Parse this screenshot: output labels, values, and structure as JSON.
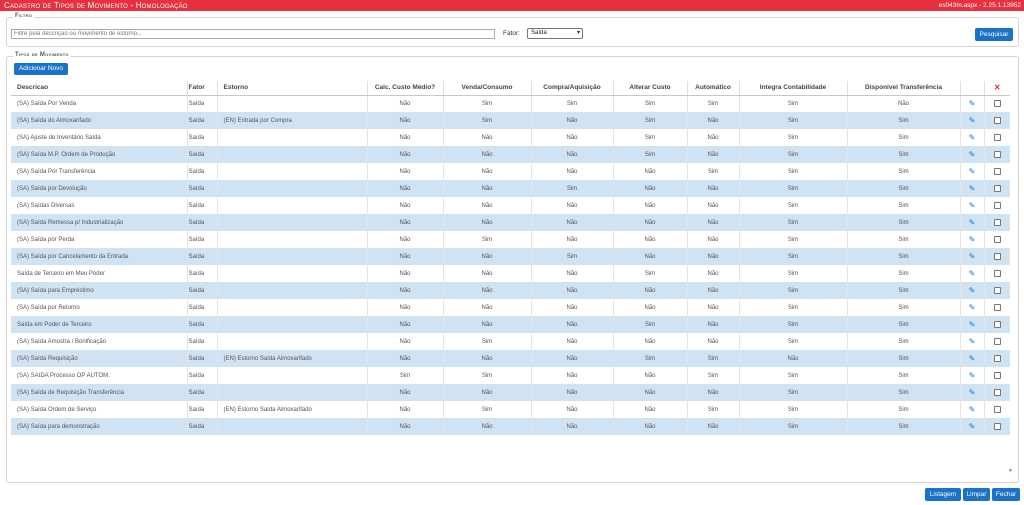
{
  "window": {
    "title": "Cadastro de Tipos de Movimento - Homologação",
    "version": "es043m.aspx - 2.25.1.13952"
  },
  "filter": {
    "legend": "Filtro",
    "placeholder": "Filtre pela descrição ou movimento de estorno...",
    "fator_label": "Fator:",
    "fator_value": "Saída",
    "search_label": "Pesquisar"
  },
  "movements": {
    "legend": "Tipos de Movimento",
    "add_label": "Adicionar Novo",
    "delete_header": "✕",
    "columns": [
      "Descricao",
      "Fator",
      "Estorno",
      "Calc. Custo Médio?",
      "Venda/Consumo",
      "Compra/Aquisição",
      "Alterar Custo",
      "Automático",
      "Integra Contabilidade",
      "Disponível Transferência"
    ],
    "rows": [
      {
        "descricao": "(SA) Saída Por Venda",
        "fator": "Saída",
        "estorno": "",
        "calc": "Não",
        "venda": "Sim",
        "compra": "Sim",
        "alterar": "Sim",
        "auto": "Sim",
        "integra": "Sim",
        "disp": "Não"
      },
      {
        "descricao": "(SA) Saída do Almoxarifado",
        "fator": "Saída",
        "estorno": "(EN) Entrada por Compra",
        "calc": "Não",
        "venda": "Sim",
        "compra": "Não",
        "alterar": "Sim",
        "auto": "Não",
        "integra": "Sim",
        "disp": "Sim"
      },
      {
        "descricao": "(SA) Ajuste de Inventário Saída",
        "fator": "Saída",
        "estorno": "",
        "calc": "Não",
        "venda": "Não",
        "compra": "Não",
        "alterar": "Sim",
        "auto": "Não",
        "integra": "Sim",
        "disp": "Sim"
      },
      {
        "descricao": "(SA) Saída M.P. Ordem de Produção",
        "fator": "Saída",
        "estorno": "",
        "calc": "Não",
        "venda": "Não",
        "compra": "Não",
        "alterar": "Sim",
        "auto": "Não",
        "integra": "Sim",
        "disp": "Sim"
      },
      {
        "descricao": "(SA) Saída Por Transferência",
        "fator": "Saída",
        "estorno": "",
        "calc": "Não",
        "venda": "Não",
        "compra": "Não",
        "alterar": "Não",
        "auto": "Sim",
        "integra": "Sim",
        "disp": "Sim"
      },
      {
        "descricao": "(SA) Saída por Devolução",
        "fator": "Saída",
        "estorno": "",
        "calc": "Não",
        "venda": "Não",
        "compra": "Sim",
        "alterar": "Não",
        "auto": "Não",
        "integra": "Sim",
        "disp": "Sim"
      },
      {
        "descricao": "(SA) Saídas Diversas",
        "fator": "Saída",
        "estorno": "",
        "calc": "Não",
        "venda": "Não",
        "compra": "Não",
        "alterar": "Não",
        "auto": "Não",
        "integra": "Sim",
        "disp": "Sim"
      },
      {
        "descricao": "(SA) Saída Remessa p/ Industrialização",
        "fator": "Saída",
        "estorno": "",
        "calc": "Não",
        "venda": "Não",
        "compra": "Não",
        "alterar": "Não",
        "auto": "Não",
        "integra": "Sim",
        "disp": "Sim"
      },
      {
        "descricao": "(SA) Saída por Perda",
        "fator": "Saída",
        "estorno": "",
        "calc": "Não",
        "venda": "Sim",
        "compra": "Não",
        "alterar": "Não",
        "auto": "Não",
        "integra": "Sim",
        "disp": "Sim"
      },
      {
        "descricao": "(SA) Saída por Cancelamento da Entrada",
        "fator": "Saída",
        "estorno": "",
        "calc": "Não",
        "venda": "Não",
        "compra": "Sim",
        "alterar": "Não",
        "auto": "Não",
        "integra": "Sim",
        "disp": "Sim"
      },
      {
        "descricao": "Saída de Terceiro em Meu Poder",
        "fator": "Saída",
        "estorno": "",
        "calc": "Não",
        "venda": "Não",
        "compra": "Não",
        "alterar": "Sim",
        "auto": "Não",
        "integra": "Sim",
        "disp": "Sim"
      },
      {
        "descricao": "(SA) Saída para Empréstimo",
        "fator": "Saída",
        "estorno": "",
        "calc": "Não",
        "venda": "Não",
        "compra": "Não",
        "alterar": "Não",
        "auto": "Não",
        "integra": "Sim",
        "disp": "Sim"
      },
      {
        "descricao": "(SA) Saída por Retorno",
        "fator": "Saída",
        "estorno": "",
        "calc": "Não",
        "venda": "Não",
        "compra": "Não",
        "alterar": "Não",
        "auto": "Não",
        "integra": "Sim",
        "disp": "Sim"
      },
      {
        "descricao": "Saída em Poder de Terceiro",
        "fator": "Saída",
        "estorno": "",
        "calc": "Não",
        "venda": "Não",
        "compra": "Não",
        "alterar": "Sim",
        "auto": "Não",
        "integra": "Sim",
        "disp": "Sim"
      },
      {
        "descricao": "(SA) Saída Amostra / Bonificação",
        "fator": "Saída",
        "estorno": "",
        "calc": "Não",
        "venda": "Sim",
        "compra": "Não",
        "alterar": "Não",
        "auto": "Não",
        "integra": "Sim",
        "disp": "Sim"
      },
      {
        "descricao": "(SA) Saída Requisição",
        "fator": "Saída",
        "estorno": "(EN) Estorno Saída Almoxarifado",
        "calc": "Não",
        "venda": "Não",
        "compra": "Não",
        "alterar": "Sim",
        "auto": "Sim",
        "integra": "Não",
        "disp": "Sim"
      },
      {
        "descricao": "(SA) SAIDA Processo OP AUTOM.",
        "fator": "Saída",
        "estorno": "",
        "calc": "Sim",
        "venda": "Sim",
        "compra": "Não",
        "alterar": "Não",
        "auto": "Sim",
        "integra": "Sim",
        "disp": "Sim"
      },
      {
        "descricao": "(SA) Saída de Requisição Transferência",
        "fator": "Saída",
        "estorno": "",
        "calc": "Não",
        "venda": "Não",
        "compra": "Não",
        "alterar": "Não",
        "auto": "Não",
        "integra": "Sim",
        "disp": "Sim"
      },
      {
        "descricao": "(SA) Saída Ordem de Serviço",
        "fator": "Saída",
        "estorno": "(EN) Estorno Saída Almoxarifado",
        "calc": "Não",
        "venda": "Sim",
        "compra": "Não",
        "alterar": "Não",
        "auto": "Sim",
        "integra": "Sim",
        "disp": "Sim"
      },
      {
        "descricao": "(SA) Saída para demonstração",
        "fator": "Saída",
        "estorno": "",
        "calc": "Não",
        "venda": "Não",
        "compra": "Não",
        "alterar": "Não",
        "auto": "Não",
        "integra": "Sim",
        "disp": "Sim"
      }
    ]
  },
  "footer": {
    "listagem_label": "Listagem",
    "limpar_label": "Limpar",
    "fechar_label": "Fechar"
  },
  "colors": {
    "titlebar": "#e8303f",
    "button": "#1a73c8",
    "row_alt": "#cfe3f3"
  },
  "icons": {
    "edit": "pencil-icon",
    "delete_header": "close-icon",
    "select": "chevron-down-icon",
    "scroll": "scroll-down-icon"
  }
}
